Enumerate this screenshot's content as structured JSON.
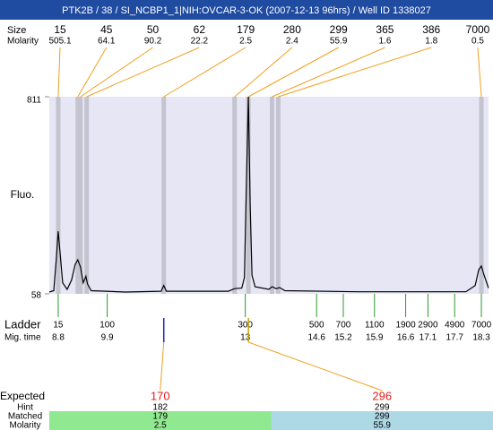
{
  "title": "PTK2B / 38 / SI_NCBP1_1|NIH:OVCAR-3-OK (2007-12-13 96hrs) / Well ID 1338027",
  "chart_data": {
    "type": "line",
    "y_label": "Fluo.",
    "ylim": [
      58,
      811
    ],
    "yticks": [
      58,
      811
    ],
    "xlim": [
      8.6,
      18.46
    ],
    "x": [
      8.6,
      8.7,
      8.76,
      8.8,
      8.84,
      8.9,
      9.0,
      9.1,
      9.18,
      9.24,
      9.3,
      9.36,
      9.42,
      9.46,
      9.54,
      10.31,
      11.11,
      11.17,
      11.23,
      12.62,
      12.76,
      12.92,
      12.98,
      13.02,
      13.07,
      13.11,
      13.15,
      13.22,
      13.53,
      13.6,
      13.69,
      13.77,
      13.89,
      15.54,
      17.95,
      18.16,
      18.24,
      18.3,
      18.36,
      18.46
    ],
    "series": [
      {
        "color": "#000000",
        "values": [
          65,
          70,
          200,
          297,
          220,
          100,
          75,
          110,
          170,
          188,
          160,
          100,
          125,
          95,
          70,
          65,
          68,
          90,
          68,
          68,
          78,
          80,
          120,
          450,
          811,
          400,
          130,
          85,
          75,
          85,
          78,
          82,
          70,
          66,
          66,
          90,
          150,
          164,
          130,
          80
        ]
      }
    ],
    "peaks": {
      "size_label": "Size",
      "molarity_label": "Molarity",
      "sizes": [
        15,
        45,
        50,
        62,
        179,
        280,
        299,
        365,
        386,
        7000
      ],
      "molarities": [
        505.1,
        64.1,
        90.2,
        22.2,
        2.5,
        2.4,
        55.9,
        1.6,
        1.8,
        0.5
      ],
      "migration_times": [
        8.8,
        9.24,
        9.3,
        9.44,
        11.17,
        12.76,
        13.07,
        13.6,
        13.74,
        18.3
      ]
    },
    "ladder": {
      "label": "Ladder",
      "time_label": "Mig. time",
      "sizes": [
        15,
        100,
        300,
        500,
        700,
        1100,
        1900,
        2900,
        4900,
        7000
      ],
      "migration_times": [
        8.8,
        9.9,
        13,
        14.6,
        15.2,
        15.9,
        16.6,
        17.1,
        17.7,
        18.3
      ]
    }
  },
  "expected": {
    "labels": [
      "Expected",
      "Hint",
      "Matched",
      "Molarity"
    ],
    "columns": [
      {
        "expected": 170,
        "hint": 182,
        "matched": 179,
        "molarity": 2.5,
        "color": "#90e890"
      },
      {
        "expected": 296,
        "hint": 299,
        "matched": 299,
        "molarity": 55.9,
        "color": "#add8e6"
      }
    ]
  }
}
